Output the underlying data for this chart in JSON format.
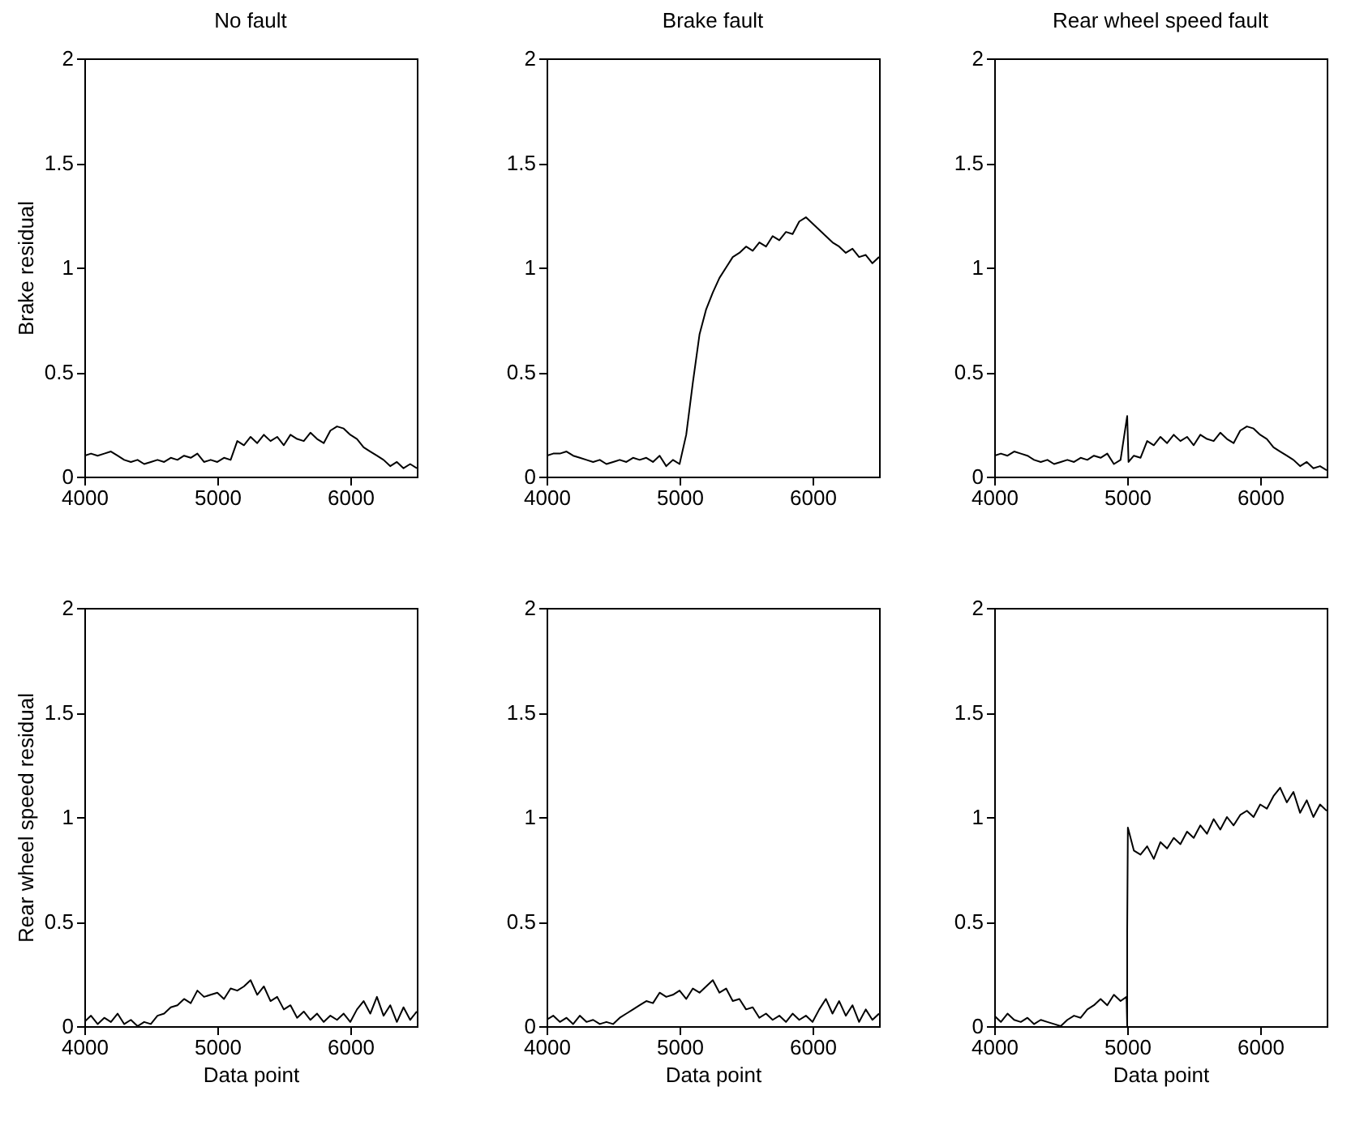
{
  "chart_data": [
    {
      "type": "line",
      "title": "No fault",
      "ylabel": "Brake residual",
      "xlim": [
        4000,
        6500
      ],
      "ylim": [
        0,
        2
      ],
      "xticks": [
        4000,
        5000,
        6000
      ],
      "yticks": [
        0,
        0.5,
        1,
        1.5,
        2
      ],
      "grid": false,
      "x": [
        4000,
        4050,
        4100,
        4150,
        4200,
        4250,
        4300,
        4350,
        4400,
        4450,
        4500,
        4550,
        4600,
        4650,
        4700,
        4750,
        4800,
        4850,
        4900,
        4950,
        5000,
        5050,
        5100,
        5150,
        5200,
        5250,
        5300,
        5350,
        5400,
        5450,
        5500,
        5550,
        5600,
        5650,
        5700,
        5750,
        5800,
        5850,
        5900,
        5950,
        6000,
        6050,
        6100,
        6150,
        6200,
        6250,
        6300,
        6350,
        6400,
        6450,
        6500
      ],
      "series": [
        {
          "color": "#000000",
          "values": [
            0.1,
            0.11,
            0.1,
            0.11,
            0.12,
            0.1,
            0.08,
            0.07,
            0.08,
            0.06,
            0.07,
            0.08,
            0.07,
            0.09,
            0.08,
            0.1,
            0.09,
            0.11,
            0.07,
            0.08,
            0.07,
            0.09,
            0.08,
            0.17,
            0.15,
            0.19,
            0.16,
            0.2,
            0.17,
            0.19,
            0.15,
            0.2,
            0.18,
            0.17,
            0.21,
            0.18,
            0.16,
            0.22,
            0.24,
            0.23,
            0.2,
            0.18,
            0.14,
            0.12,
            0.1,
            0.08,
            0.05,
            0.07,
            0.04,
            0.06,
            0.04
          ]
        }
      ]
    },
    {
      "type": "line",
      "title": "Brake fault",
      "xlim": [
        4000,
        6500
      ],
      "ylim": [
        0,
        2
      ],
      "xticks": [
        4000,
        5000,
        6000
      ],
      "yticks": [
        0,
        0.5,
        1,
        1.5,
        2
      ],
      "grid": false,
      "x": [
        4000,
        4050,
        4100,
        4150,
        4200,
        4250,
        4300,
        4350,
        4400,
        4450,
        4500,
        4550,
        4600,
        4650,
        4700,
        4750,
        4800,
        4850,
        4900,
        4950,
        5000,
        5050,
        5100,
        5150,
        5200,
        5250,
        5300,
        5350,
        5400,
        5450,
        5500,
        5550,
        5600,
        5650,
        5700,
        5750,
        5800,
        5850,
        5900,
        5950,
        6000,
        6050,
        6100,
        6150,
        6200,
        6250,
        6300,
        6350,
        6400,
        6450,
        6500
      ],
      "series": [
        {
          "color": "#000000",
          "values": [
            0.1,
            0.11,
            0.11,
            0.12,
            0.1,
            0.09,
            0.08,
            0.07,
            0.08,
            0.06,
            0.07,
            0.08,
            0.07,
            0.09,
            0.08,
            0.09,
            0.07,
            0.1,
            0.05,
            0.08,
            0.06,
            0.2,
            0.45,
            0.68,
            0.8,
            0.88,
            0.95,
            1.0,
            1.05,
            1.07,
            1.1,
            1.08,
            1.12,
            1.1,
            1.15,
            1.13,
            1.17,
            1.16,
            1.22,
            1.24,
            1.21,
            1.18,
            1.15,
            1.12,
            1.1,
            1.07,
            1.09,
            1.05,
            1.06,
            1.02,
            1.05
          ]
        }
      ]
    },
    {
      "type": "line",
      "title": "Rear wheel speed fault",
      "xlim": [
        4000,
        6500
      ],
      "ylim": [
        0,
        2
      ],
      "xticks": [
        4000,
        5000,
        6000
      ],
      "yticks": [
        0,
        0.5,
        1,
        1.5,
        2
      ],
      "grid": false,
      "x": [
        4000,
        4050,
        4100,
        4150,
        4200,
        4250,
        4300,
        4350,
        4400,
        4450,
        4500,
        4550,
        4600,
        4650,
        4700,
        4750,
        4800,
        4850,
        4900,
        4950,
        5000,
        5010,
        5050,
        5100,
        5150,
        5200,
        5250,
        5300,
        5350,
        5400,
        5450,
        5500,
        5550,
        5600,
        5650,
        5700,
        5750,
        5800,
        5850,
        5900,
        5950,
        6000,
        6050,
        6100,
        6150,
        6200,
        6250,
        6300,
        6350,
        6400,
        6450,
        6500
      ],
      "series": [
        {
          "color": "#000000",
          "values": [
            0.1,
            0.11,
            0.1,
            0.12,
            0.11,
            0.1,
            0.08,
            0.07,
            0.08,
            0.06,
            0.07,
            0.08,
            0.07,
            0.09,
            0.08,
            0.1,
            0.09,
            0.11,
            0.06,
            0.08,
            0.29,
            0.07,
            0.1,
            0.09,
            0.17,
            0.15,
            0.19,
            0.16,
            0.2,
            0.17,
            0.19,
            0.15,
            0.2,
            0.18,
            0.17,
            0.21,
            0.18,
            0.16,
            0.22,
            0.24,
            0.23,
            0.2,
            0.18,
            0.14,
            0.12,
            0.1,
            0.08,
            0.05,
            0.07,
            0.04,
            0.05,
            0.03
          ]
        }
      ]
    },
    {
      "type": "line",
      "xlabel": "Data point",
      "ylabel": "Rear wheel speed residual",
      "xlim": [
        4000,
        6500
      ],
      "ylim": [
        0,
        2
      ],
      "xticks": [
        4000,
        5000,
        6000
      ],
      "yticks": [
        0,
        0.5,
        1,
        1.5,
        2
      ],
      "grid": false,
      "x": [
        4000,
        4050,
        4100,
        4150,
        4200,
        4250,
        4300,
        4350,
        4400,
        4450,
        4500,
        4550,
        4600,
        4650,
        4700,
        4750,
        4800,
        4850,
        4900,
        4950,
        5000,
        5050,
        5100,
        5150,
        5200,
        5250,
        5300,
        5350,
        5400,
        5450,
        5500,
        5550,
        5600,
        5650,
        5700,
        5750,
        5800,
        5850,
        5900,
        5950,
        6000,
        6050,
        6100,
        6150,
        6200,
        6250,
        6300,
        6350,
        6400,
        6450,
        6500
      ],
      "series": [
        {
          "color": "#000000",
          "values": [
            0.02,
            0.05,
            0.01,
            0.04,
            0.02,
            0.06,
            0.01,
            0.03,
            0.0,
            0.02,
            0.01,
            0.05,
            0.06,
            0.09,
            0.1,
            0.13,
            0.11,
            0.17,
            0.14,
            0.15,
            0.16,
            0.13,
            0.18,
            0.17,
            0.19,
            0.22,
            0.15,
            0.19,
            0.12,
            0.14,
            0.08,
            0.1,
            0.04,
            0.07,
            0.03,
            0.06,
            0.02,
            0.05,
            0.03,
            0.06,
            0.02,
            0.08,
            0.12,
            0.06,
            0.14,
            0.05,
            0.1,
            0.02,
            0.09,
            0.03,
            0.07
          ]
        }
      ]
    },
    {
      "type": "line",
      "xlabel": "Data point",
      "xlim": [
        4000,
        6500
      ],
      "ylim": [
        0,
        2
      ],
      "xticks": [
        4000,
        5000,
        6000
      ],
      "yticks": [
        0,
        0.5,
        1,
        1.5,
        2
      ],
      "grid": false,
      "x": [
        4000,
        4050,
        4100,
        4150,
        4200,
        4250,
        4300,
        4350,
        4400,
        4450,
        4500,
        4550,
        4600,
        4650,
        4700,
        4750,
        4800,
        4850,
        4900,
        4950,
        5000,
        5050,
        5100,
        5150,
        5200,
        5250,
        5300,
        5350,
        5400,
        5450,
        5500,
        5550,
        5600,
        5650,
        5700,
        5750,
        5800,
        5850,
        5900,
        5950,
        6000,
        6050,
        6100,
        6150,
        6200,
        6250,
        6300,
        6350,
        6400,
        6450,
        6500
      ],
      "series": [
        {
          "color": "#000000",
          "values": [
            0.03,
            0.05,
            0.02,
            0.04,
            0.01,
            0.05,
            0.02,
            0.03,
            0.01,
            0.02,
            0.01,
            0.04,
            0.06,
            0.08,
            0.1,
            0.12,
            0.11,
            0.16,
            0.14,
            0.15,
            0.17,
            0.13,
            0.18,
            0.16,
            0.19,
            0.22,
            0.16,
            0.18,
            0.12,
            0.13,
            0.08,
            0.09,
            0.04,
            0.06,
            0.03,
            0.05,
            0.02,
            0.06,
            0.03,
            0.05,
            0.02,
            0.08,
            0.13,
            0.06,
            0.12,
            0.05,
            0.1,
            0.02,
            0.08,
            0.03,
            0.06
          ]
        }
      ]
    },
    {
      "type": "line",
      "xlabel": "Data point",
      "xlim": [
        4000,
        6500
      ],
      "ylim": [
        0,
        2
      ],
      "xticks": [
        4000,
        5000,
        6000
      ],
      "yticks": [
        0,
        0.5,
        1,
        1.5,
        2
      ],
      "grid": false,
      "x": [
        4000,
        4050,
        4100,
        4150,
        4200,
        4250,
        4300,
        4350,
        4400,
        4450,
        4500,
        4550,
        4600,
        4650,
        4700,
        4750,
        4800,
        4850,
        4900,
        4950,
        4995,
        5000,
        5000,
        5005,
        5050,
        5100,
        5150,
        5200,
        5250,
        5300,
        5350,
        5400,
        5450,
        5500,
        5550,
        5600,
        5650,
        5700,
        5750,
        5800,
        5850,
        5900,
        5950,
        6000,
        6050,
        6100,
        6150,
        6200,
        6250,
        6300,
        6350,
        6400,
        6450,
        6500
      ],
      "series": [
        {
          "color": "#000000",
          "values": [
            0.05,
            0.02,
            0.06,
            0.03,
            0.02,
            0.04,
            0.01,
            0.03,
            0.02,
            0.01,
            0.0,
            0.03,
            0.05,
            0.04,
            0.08,
            0.1,
            0.13,
            0.1,
            0.15,
            0.12,
            0.14,
            0.0,
            0.45,
            0.95,
            0.84,
            0.82,
            0.86,
            0.8,
            0.88,
            0.85,
            0.9,
            0.87,
            0.93,
            0.9,
            0.96,
            0.92,
            0.99,
            0.94,
            1.0,
            0.96,
            1.01,
            1.03,
            1.0,
            1.06,
            1.04,
            1.1,
            1.14,
            1.07,
            1.12,
            1.02,
            1.08,
            1.0,
            1.06,
            1.03
          ]
        }
      ]
    }
  ]
}
